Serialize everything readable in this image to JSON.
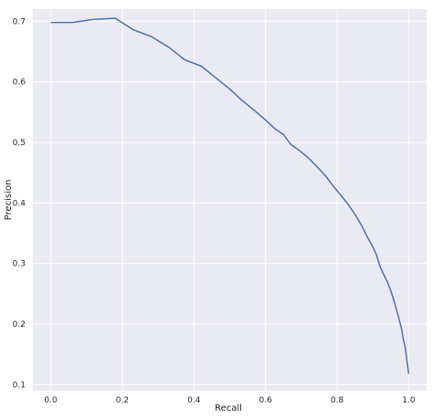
{
  "chart_data": {
    "type": "line",
    "title": "",
    "xlabel": "Recall",
    "ylabel": "Precision",
    "xlim": [
      -0.05,
      1.05
    ],
    "ylim": [
      0.09,
      0.72
    ],
    "xticks": [
      0.0,
      0.2,
      0.4,
      0.6,
      0.8,
      1.0
    ],
    "xtick_labels": [
      "0.0",
      "0.2",
      "0.4",
      "0.6",
      "0.8",
      "1.0"
    ],
    "yticks": [
      0.1,
      0.2,
      0.3,
      0.4,
      0.5,
      0.6,
      0.7
    ],
    "ytick_labels": [
      "0.1",
      "0.2",
      "0.3",
      "0.4",
      "0.5",
      "0.6",
      "0.7"
    ],
    "grid": true,
    "background": "#eaeaf2",
    "grid_color": "#ffffff",
    "series": [
      {
        "color": "#4c72b0",
        "x": [
          0.0,
          0.06,
          0.12,
          0.18,
          0.23,
          0.28,
          0.33,
          0.375,
          0.42,
          0.46,
          0.5,
          0.535,
          0.57,
          0.6,
          0.625,
          0.65,
          0.67,
          0.7,
          0.72,
          0.745,
          0.77,
          0.79,
          0.81,
          0.83,
          0.85,
          0.87,
          0.885,
          0.9,
          0.91,
          0.92,
          0.93,
          0.94,
          0.95,
          0.96,
          0.97,
          0.98,
          0.985,
          0.99,
          0.995,
          1.0
        ],
        "y": [
          0.698,
          0.698,
          0.703,
          0.705,
          0.686,
          0.675,
          0.657,
          0.636,
          0.626,
          0.607,
          0.588,
          0.569,
          0.552,
          0.537,
          0.523,
          0.513,
          0.497,
          0.484,
          0.474,
          0.459,
          0.443,
          0.427,
          0.413,
          0.398,
          0.381,
          0.361,
          0.343,
          0.327,
          0.314,
          0.295,
          0.282,
          0.27,
          0.255,
          0.236,
          0.215,
          0.192,
          0.175,
          0.162,
          0.14,
          0.118
        ]
      }
    ]
  }
}
